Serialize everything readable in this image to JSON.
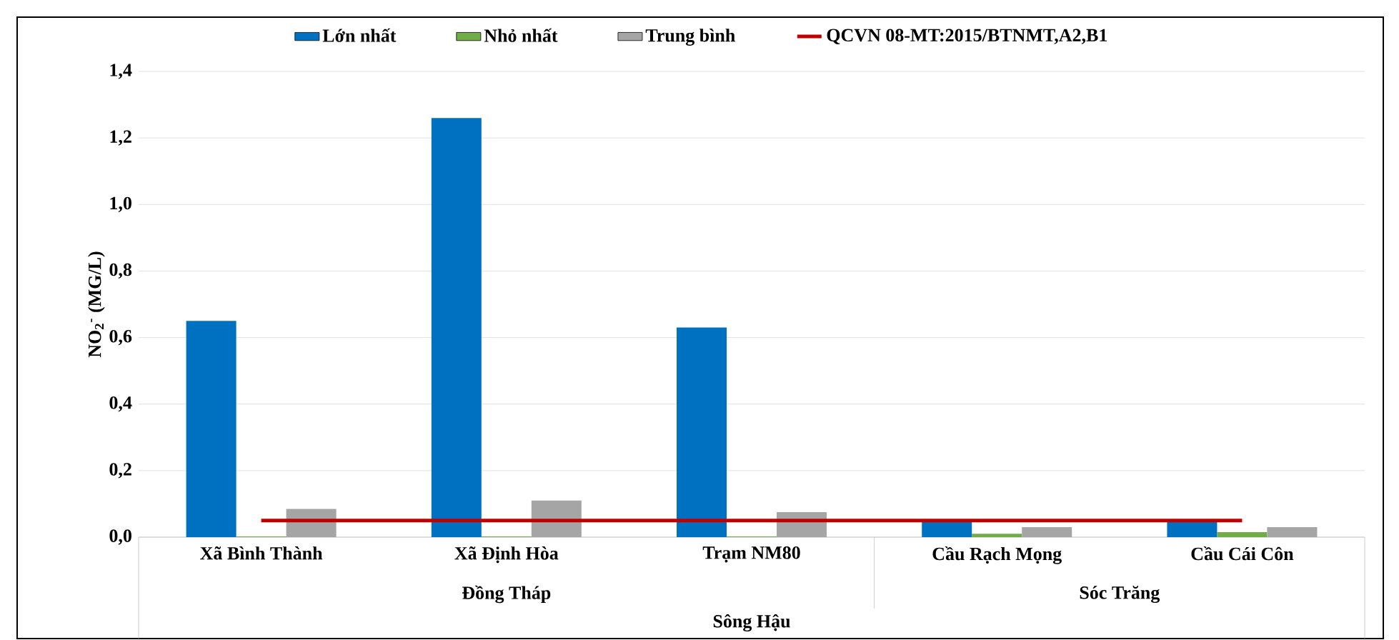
{
  "chart_data": {
    "type": "bar",
    "ylabel": "NO$_{2}$$^{-}$ (MG/L)",
    "categories": [
      "Xã Bình Thành",
      "Xã Định Hòa",
      "Trạm NM80",
      "Cầu Rạch Mọng",
      "Cầu Cái Côn"
    ],
    "series": [
      {
        "name": "Lớn nhất",
        "color": "#0070c0",
        "values": [
          0.65,
          1.26,
          0.63,
          0.05,
          0.05
        ]
      },
      {
        "name": "Nhỏ nhất",
        "color": "#70ad47",
        "values": [
          0.002,
          0.002,
          0.002,
          0.01,
          0.015
        ]
      },
      {
        "name": "Trung bình",
        "color": "#a5a5a5",
        "values": [
          0.085,
          0.11,
          0.075,
          0.03,
          0.03
        ]
      },
      {
        "name": "QCVN 08-MT:2015/BTNMT,A2,B1",
        "color": "#c00000",
        "type": "line",
        "values": [
          0.05,
          0.05,
          0.05,
          0.05,
          0.05
        ]
      }
    ],
    "ylim": [
      0,
      1.4
    ],
    "yticks": [
      {
        "value": 0,
        "label": "0,0"
      },
      {
        "value": 0.2,
        "label": "0,2"
      },
      {
        "value": 0.4,
        "label": "0,4"
      },
      {
        "value": 0.6,
        "label": "0,6"
      },
      {
        "value": 0.8,
        "label": "0,8"
      },
      {
        "value": 1.0,
        "label": "1,0"
      },
      {
        "value": 1.2,
        "label": "1,2"
      },
      {
        "value": 1.4,
        "label": "1,4"
      }
    ],
    "grid": "y",
    "legend": "top",
    "annotations": [
      "Đồng Tháp",
      "Sóc Trăng",
      "Sông Hậu"
    ]
  }
}
